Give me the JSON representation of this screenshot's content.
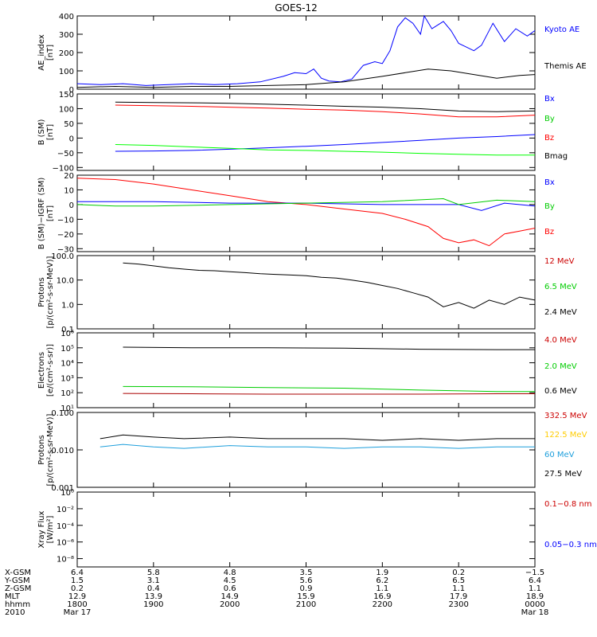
{
  "chart_data": {
    "type": "line",
    "title": "GOES-12",
    "panels": [
      {
        "id": "ae",
        "ylabel": [
          "AE_index",
          "[nT]"
        ],
        "yscale": "linear",
        "ylim": [
          0,
          400
        ],
        "ticks": [
          "0",
          "100",
          "200",
          "300",
          "400"
        ],
        "tick_values": [
          0,
          100,
          200,
          300,
          400
        ],
        "series": [
          {
            "name": "Kyoto AE",
            "color": "#0000ff",
            "x": [
              0,
              0.3,
              0.6,
              0.9,
              1.2,
              1.5,
              1.8,
              2.1,
              2.4,
              2.7,
              2.85,
              3.0,
              3.1,
              3.2,
              3.3,
              3.45,
              3.6,
              3.75,
              3.9,
              4.0,
              4.1,
              4.2,
              4.3,
              4.4,
              4.5,
              4.55,
              4.65,
              4.8,
              4.9,
              5.0,
              5.1,
              5.2,
              5.3,
              5.45,
              5.6,
              5.75,
              5.9,
              6.0
            ],
            "y": [
              30,
              25,
              30,
              20,
              25,
              30,
              25,
              30,
              40,
              70,
              90,
              85,
              110,
              60,
              45,
              40,
              55,
              130,
              150,
              140,
              210,
              340,
              390,
              360,
              300,
              400,
              330,
              370,
              320,
              250,
              230,
              210,
              240,
              360,
              260,
              330,
              290,
              320
            ]
          },
          {
            "name": "Themis AE",
            "color": "#000000",
            "x": [
              0,
              0.5,
              1.0,
              1.5,
              2.0,
              2.5,
              3.0,
              3.5,
              4.0,
              4.3,
              4.6,
              4.9,
              5.2,
              5.5,
              5.8,
              6.0
            ],
            "y": [
              10,
              15,
              10,
              15,
              15,
              20,
              25,
              40,
              70,
              90,
              110,
              100,
              80,
              60,
              75,
              80
            ]
          }
        ],
        "legend": [
          {
            "text": "Kyoto AE",
            "color": "#0000ff"
          },
          {
            "text": "Themis AE",
            "color": "#000000"
          }
        ]
      },
      {
        "id": "b",
        "ylabel": [
          "B (SM)",
          "[nT]"
        ],
        "yscale": "linear",
        "ylim": [
          -110,
          150
        ],
        "ticks": [
          "−100",
          "−50",
          "0",
          "50",
          "100",
          "150"
        ],
        "tick_values": [
          -100,
          -50,
          0,
          50,
          100,
          150
        ],
        "series": [
          {
            "name": "Bmag",
            "color": "#000000",
            "x": [
              0.5,
              1.0,
              1.5,
              2.0,
              2.5,
              3.0,
              3.5,
              4.0,
              4.5,
              5.0,
              5.5,
              6.0
            ],
            "y": [
              122,
              121,
              120,
              118,
              115,
              112,
              108,
              105,
              100,
              92,
              90,
              92
            ]
          },
          {
            "name": "Bz",
            "color": "#ff0000",
            "x": [
              0.5,
              1.0,
              1.5,
              2.0,
              2.5,
              3.0,
              3.5,
              4.0,
              4.5,
              5.0,
              5.5,
              6.0
            ],
            "y": [
              112,
              110,
              108,
              105,
              102,
              98,
              95,
              90,
              82,
              72,
              72,
              78
            ]
          },
          {
            "name": "Bx",
            "color": "#0000ff",
            "x": [
              0.5,
              1.0,
              1.5,
              2.0,
              2.5,
              3.0,
              3.5,
              4.0,
              4.5,
              5.0,
              5.5,
              6.0
            ],
            "y": [
              -45,
              -44,
              -42,
              -38,
              -33,
              -28,
              -22,
              -15,
              -8,
              0,
              5,
              12
            ]
          },
          {
            "name": "By",
            "color": "#00ff00",
            "x": [
              0.5,
              1.0,
              1.5,
              2.0,
              2.5,
              3.0,
              3.5,
              4.0,
              4.5,
              5.0,
              5.5,
              6.0
            ],
            "y": [
              -22,
              -25,
              -30,
              -35,
              -40,
              -42,
              -45,
              -48,
              -52,
              -55,
              -58,
              -58
            ]
          }
        ],
        "legend": [
          {
            "text": "Bx",
            "color": "#0000ff"
          },
          {
            "text": "By",
            "color": "#00cc00"
          },
          {
            "text": "Bz",
            "color": "#ff0000"
          },
          {
            "text": "Bmag",
            "color": "#000000"
          }
        ]
      },
      {
        "id": "bdiff",
        "ylabel": [
          "B (SM)−IGRF (SM)",
          "[nT]"
        ],
        "yscale": "linear",
        "ylim": [
          -32,
          20
        ],
        "ticks": [
          "−30",
          "−20",
          "−10",
          "0",
          "10",
          "20"
        ],
        "tick_values": [
          -30,
          -20,
          -10,
          0,
          10,
          20
        ],
        "series": [
          {
            "name": "Bz",
            "color": "#ff0000",
            "x": [
              0,
              0.5,
              1.0,
              1.5,
              2.0,
              2.5,
              3.0,
              3.5,
              4.0,
              4.3,
              4.6,
              4.8,
              5.0,
              5.2,
              5.4,
              5.6,
              5.8,
              6.0
            ],
            "y": [
              18,
              17,
              14,
              10,
              6,
              2,
              0,
              -3,
              -6,
              -10,
              -15,
              -23,
              -26,
              -24,
              -28,
              -20,
              -18,
              -16
            ]
          },
          {
            "name": "Bx",
            "color": "#0000ff",
            "x": [
              0,
              0.5,
              1.0,
              2.0,
              3.0,
              4.0,
              5.0,
              5.3,
              5.6,
              6.0
            ],
            "y": [
              2,
              2,
              2,
              1,
              1,
              0,
              0,
              -4,
              1,
              -1
            ]
          },
          {
            "name": "By",
            "color": "#00cc00",
            "x": [
              0,
              0.5,
              1.0,
              2.0,
              3.0,
              4.0,
              4.8,
              5.0,
              5.5,
              6.0
            ],
            "y": [
              0,
              -1,
              -1,
              0,
              1,
              2,
              4,
              0,
              3,
              2
            ]
          }
        ],
        "legend": [
          {
            "text": "Bx",
            "color": "#0000ff"
          },
          {
            "text": "By",
            "color": "#00cc00"
          },
          {
            "text": "Bz",
            "color": "#ff0000"
          }
        ]
      },
      {
        "id": "protons",
        "ylabel": [
          "Protons",
          "[p/(cm²-s-sr-MeV)]"
        ],
        "yscale": "log",
        "ylim": [
          0.1,
          100
        ],
        "ticks": [
          "0.1",
          "1.0",
          "10.0",
          "100.0"
        ],
        "tick_values": [
          0.1,
          1,
          10,
          100
        ],
        "series": [
          {
            "name": "2.4 MeV",
            "color": "#000000",
            "x": [
              0.6,
              0.8,
              1.0,
              1.2,
              1.4,
              1.6,
              1.8,
              2.0,
              2.2,
              2.4,
              2.6,
              2.8,
              3.0,
              3.2,
              3.4,
              3.6,
              3.8,
              4.0,
              4.2,
              4.4,
              4.6,
              4.8,
              5.0,
              5.2,
              5.4,
              5.6,
              5.8,
              6.0
            ],
            "y": [
              50,
              45,
              38,
              32,
              28,
              25,
              24,
              22,
              20,
              18,
              17,
              16,
              15,
              13,
              12,
              10,
              8,
              6,
              4.5,
              3,
              2,
              0.8,
              1.2,
              0.7,
              1.5,
              1.0,
              2.0,
              1.5
            ]
          }
        ],
        "legend": [
          {
            "text": "12 MeV",
            "color": "#cc0000"
          },
          {
            "text": "6.5 MeV",
            "color": "#00cc00"
          },
          {
            "text": "2.4 MeV",
            "color": "#000000"
          }
        ]
      },
      {
        "id": "electrons",
        "ylabel": [
          "Electrons",
          "[e/(cm²-s-sr)]"
        ],
        "yscale": "log",
        "ylim": [
          10,
          1000000
        ],
        "ticks": [
          "10¹",
          "10²",
          "10³",
          "10⁴",
          "10⁵",
          "10⁶"
        ],
        "tick_values": [
          10,
          100,
          1000,
          10000,
          100000,
          1000000
        ],
        "series": [
          {
            "name": "0.6 MeV",
            "color": "#000000",
            "x": [
              0.6,
              1.5,
              2.5,
              3.5,
              4.5,
              5.5,
              6.0
            ],
            "y": [
              110000,
              100000,
              100000,
              95000,
              80000,
              75000,
              75000
            ]
          },
          {
            "name": "2.0 MeV",
            "color": "#00cc00",
            "x": [
              0.6,
              1.5,
              2.5,
              3.5,
              4.5,
              5.5,
              6.0
            ],
            "y": [
              260,
              250,
              220,
              200,
              150,
              120,
              120
            ]
          },
          {
            "name": "4.0 MeV",
            "color": "#aa0000",
            "x": [
              0.6,
              1.5,
              2.5,
              3.5,
              4.5,
              5.5,
              6.0
            ],
            "y": [
              90,
              85,
              80,
              80,
              80,
              85,
              85
            ]
          }
        ],
        "legend": [
          {
            "text": "4.0 MeV",
            "color": "#cc0000"
          },
          {
            "text": "2.0 MeV",
            "color": "#00cc00"
          },
          {
            "text": "0.6 MeV",
            "color": "#000000"
          }
        ]
      },
      {
        "id": "hiprotons",
        "ylabel": [
          "Protons",
          "[p/(cm²-s-sr-MeV)]"
        ],
        "yscale": "log",
        "ylim": [
          0.001,
          0.1
        ],
        "ticks": [
          "0.001",
          "0.010",
          "0.100"
        ],
        "tick_values": [
          0.001,
          0.01,
          0.1
        ],
        "series": [
          {
            "name": "27.5 MeV",
            "color": "#000000",
            "x": [
              0.3,
              0.6,
              1.0,
              1.4,
              2.0,
              2.5,
              3.0,
              3.5,
              4.0,
              4.5,
              5.0,
              5.5,
              6.0
            ],
            "y": [
              0.02,
              0.025,
              0.022,
              0.02,
              0.022,
              0.02,
              0.02,
              0.02,
              0.018,
              0.02,
              0.018,
              0.02,
              0.02
            ]
          },
          {
            "name": "60 MeV",
            "color": "#1e9fdc",
            "x": [
              0.3,
              0.6,
              1.0,
              1.4,
              2.0,
              2.5,
              3.0,
              3.5,
              4.0,
              4.5,
              5.0,
              5.5,
              6.0
            ],
            "y": [
              0.012,
              0.014,
              0.012,
              0.011,
              0.013,
              0.012,
              0.012,
              0.011,
              0.012,
              0.012,
              0.011,
              0.012,
              0.012
            ]
          }
        ],
        "legend": [
          {
            "text": "332.5 MeV",
            "color": "#cc0000"
          },
          {
            "text": "122.5 MeV",
            "color": "#ffcc00"
          },
          {
            "text": "60 MeV",
            "color": "#1e9fdc"
          },
          {
            "text": "27.5 MeV",
            "color": "#000000"
          }
        ]
      },
      {
        "id": "xray",
        "ylabel": [
          "Xray  Flux",
          "[W/m²]"
        ],
        "yscale": "log",
        "ylim": [
          1e-09,
          1
        ],
        "ticks": [
          "10⁻⁸",
          "10⁻⁶",
          "10⁻⁴",
          "10⁻²",
          "10⁰"
        ],
        "tick_values": [
          1e-08,
          1e-06,
          0.0001,
          0.01,
          1
        ],
        "series": [],
        "legend": [
          {
            "text": "0.1−0.8 nm",
            "color": "#cc0000"
          },
          {
            "text": "0.05−0.3 nm",
            "color": "#0000ff"
          }
        ]
      }
    ],
    "x_labels": {
      "rows": [
        "X-GSM",
        "Y-GSM",
        "Z-GSM",
        "MLT",
        "hhmm",
        "2010"
      ],
      "columns": [
        [
          "6.4",
          "1.5",
          "0.2",
          "12.9",
          "1800",
          "Mar 17"
        ],
        [
          "5.8",
          "3.1",
          "0.4",
          "13.9",
          "1900",
          ""
        ],
        [
          "4.8",
          "4.5",
          "0.6",
          "14.9",
          "2000",
          ""
        ],
        [
          "3.5",
          "5.6",
          "0.9",
          "15.9",
          "2100",
          ""
        ],
        [
          "1.9",
          "6.2",
          "1.1",
          "16.9",
          "2200",
          ""
        ],
        [
          "0.2",
          "6.5",
          "1.1",
          "17.9",
          "2300",
          ""
        ],
        [
          "−1.5",
          "6.4",
          "1.1",
          "18.9",
          "0000",
          "Mar 18"
        ]
      ]
    },
    "xlim": [
      0,
      6
    ]
  }
}
